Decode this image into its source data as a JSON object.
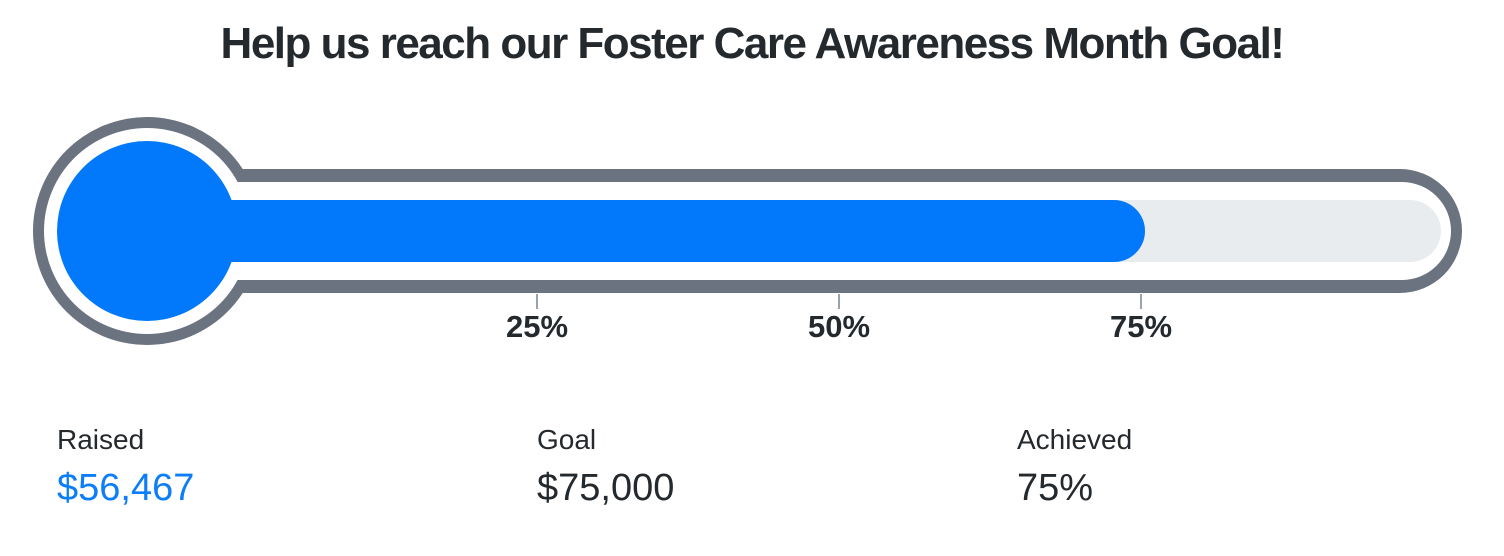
{
  "chart_data": {
    "type": "thermometer",
    "title": "Help us reach our Foster Care Awareness Month Goal!",
    "progress_percent": 75.3,
    "raised": {
      "label": "Raised",
      "value": "$56,467",
      "amount": 56467
    },
    "goal": {
      "label": "Goal",
      "value": "$75,000",
      "amount": 75000
    },
    "achieved": {
      "label": "Achieved",
      "value": "75%"
    },
    "ticks": [
      {
        "label": "25%",
        "percent": 25
      },
      {
        "label": "50%",
        "percent": 50
      },
      {
        "label": "75%",
        "percent": 75
      }
    ],
    "axis_range_percent": [
      0,
      100
    ],
    "colors": {
      "fill": "#0278fb",
      "frame": "#6b7280",
      "track": "#e9ecef",
      "tick": "#9aa3ac",
      "text": "#24292e",
      "raised_value": "#0d7ef7",
      "background": "#ffffff"
    }
  }
}
